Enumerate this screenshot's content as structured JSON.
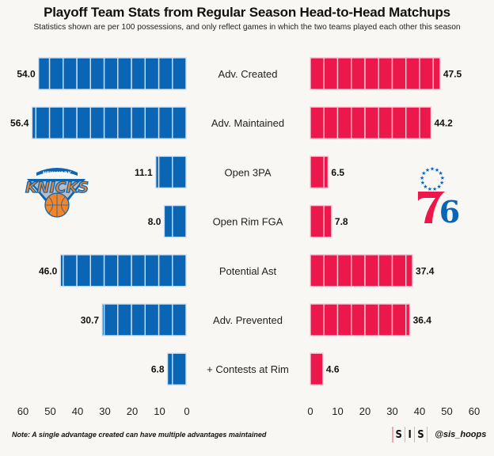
{
  "header": {
    "title": "Playoff Team Stats from Regular Season Head-to-Head Matchups",
    "subtitle": "Statistics shown are per 100 possessions, and only reflect games in which the two teams played each other this season"
  },
  "teams": {
    "left": {
      "name": "New York Knicks",
      "logo": "knicks-logo",
      "color": "#0a66b5"
    },
    "right": {
      "name": "Philadelphia 76ers",
      "logo": "sixers-logo",
      "color": "#ec174a"
    }
  },
  "footer": {
    "note": "Note: A single advantage created can have multiple advantages maintained",
    "brand_letters": [
      "S",
      "I",
      "S"
    ],
    "handle": "@sis_hoops"
  },
  "chart_data": {
    "type": "bar",
    "orientation": "horizontal-butterfly",
    "title": "Playoff Team Stats from Regular Season Head-to-Head Matchups",
    "subtitle": "Statistics shown are per 100 possessions, and only reflect games in which the two teams played each other this season",
    "categories": [
      "Adv. Created",
      "Adv. Maintained",
      "Open 3PA",
      "Open Rim FGA",
      "Potential Ast",
      "Adv. Prevented",
      "+ Contests at Rim"
    ],
    "series": [
      {
        "name": "New York Knicks",
        "side": "left",
        "color": "#0a66b5",
        "values": [
          54.0,
          56.4,
          11.1,
          8.0,
          46.0,
          30.7,
          6.8
        ],
        "labels": [
          "54.0",
          "56.4",
          "11.1",
          "8.0",
          "46.0",
          "30.7",
          "6.8"
        ]
      },
      {
        "name": "Philadelphia 76ers",
        "side": "right",
        "color": "#ec174a",
        "values": [
          47.5,
          44.2,
          6.5,
          7.8,
          37.4,
          36.4,
          4.6
        ],
        "labels": [
          "47.5",
          "44.2",
          "6.5",
          "7.8",
          "37.4",
          "36.4",
          "4.6"
        ]
      }
    ],
    "segment_size": 5,
    "xlim": [
      0,
      60
    ],
    "left_ticks": [
      "60",
      "50",
      "40",
      "30",
      "20",
      "10",
      "0"
    ],
    "right_ticks": [
      "0",
      "10",
      "20",
      "30",
      "40",
      "50",
      "60"
    ],
    "grid": false,
    "legend": "team logos (left: Knicks, right: 76ers)"
  }
}
